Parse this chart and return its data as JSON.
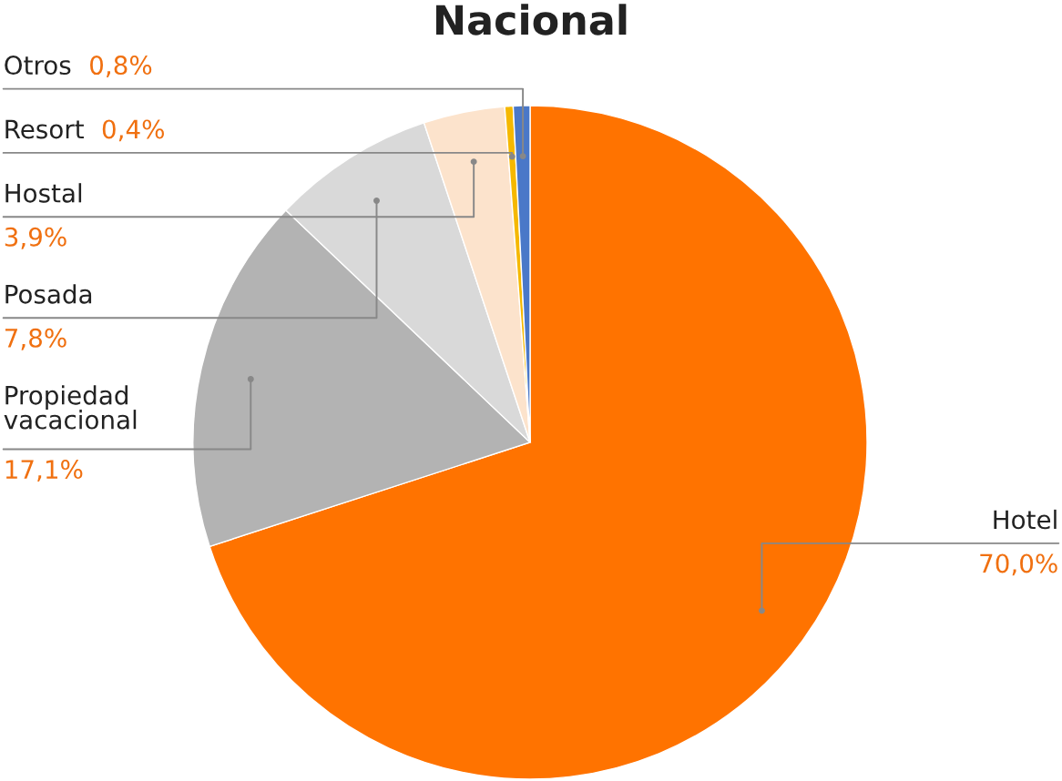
{
  "chart_data": {
    "type": "pie",
    "title": "Nacional",
    "categories": [
      "Hotel",
      "Propiedad\nvacacional",
      "Posada",
      "Hostal",
      "Resort",
      "Otros"
    ],
    "values": [
      70.0,
      17.1,
      7.8,
      3.9,
      0.4,
      0.8
    ],
    "value_labels": [
      "70,0%",
      "17,1%",
      "7,8%",
      "3,9%",
      "0,4%",
      "0,8%"
    ],
    "colors": [
      "#ff7300",
      "#b3b3b3",
      "#d9d9d9",
      "#fce3cc",
      "#f5b800",
      "#4a78c8"
    ],
    "legend": false
  }
}
